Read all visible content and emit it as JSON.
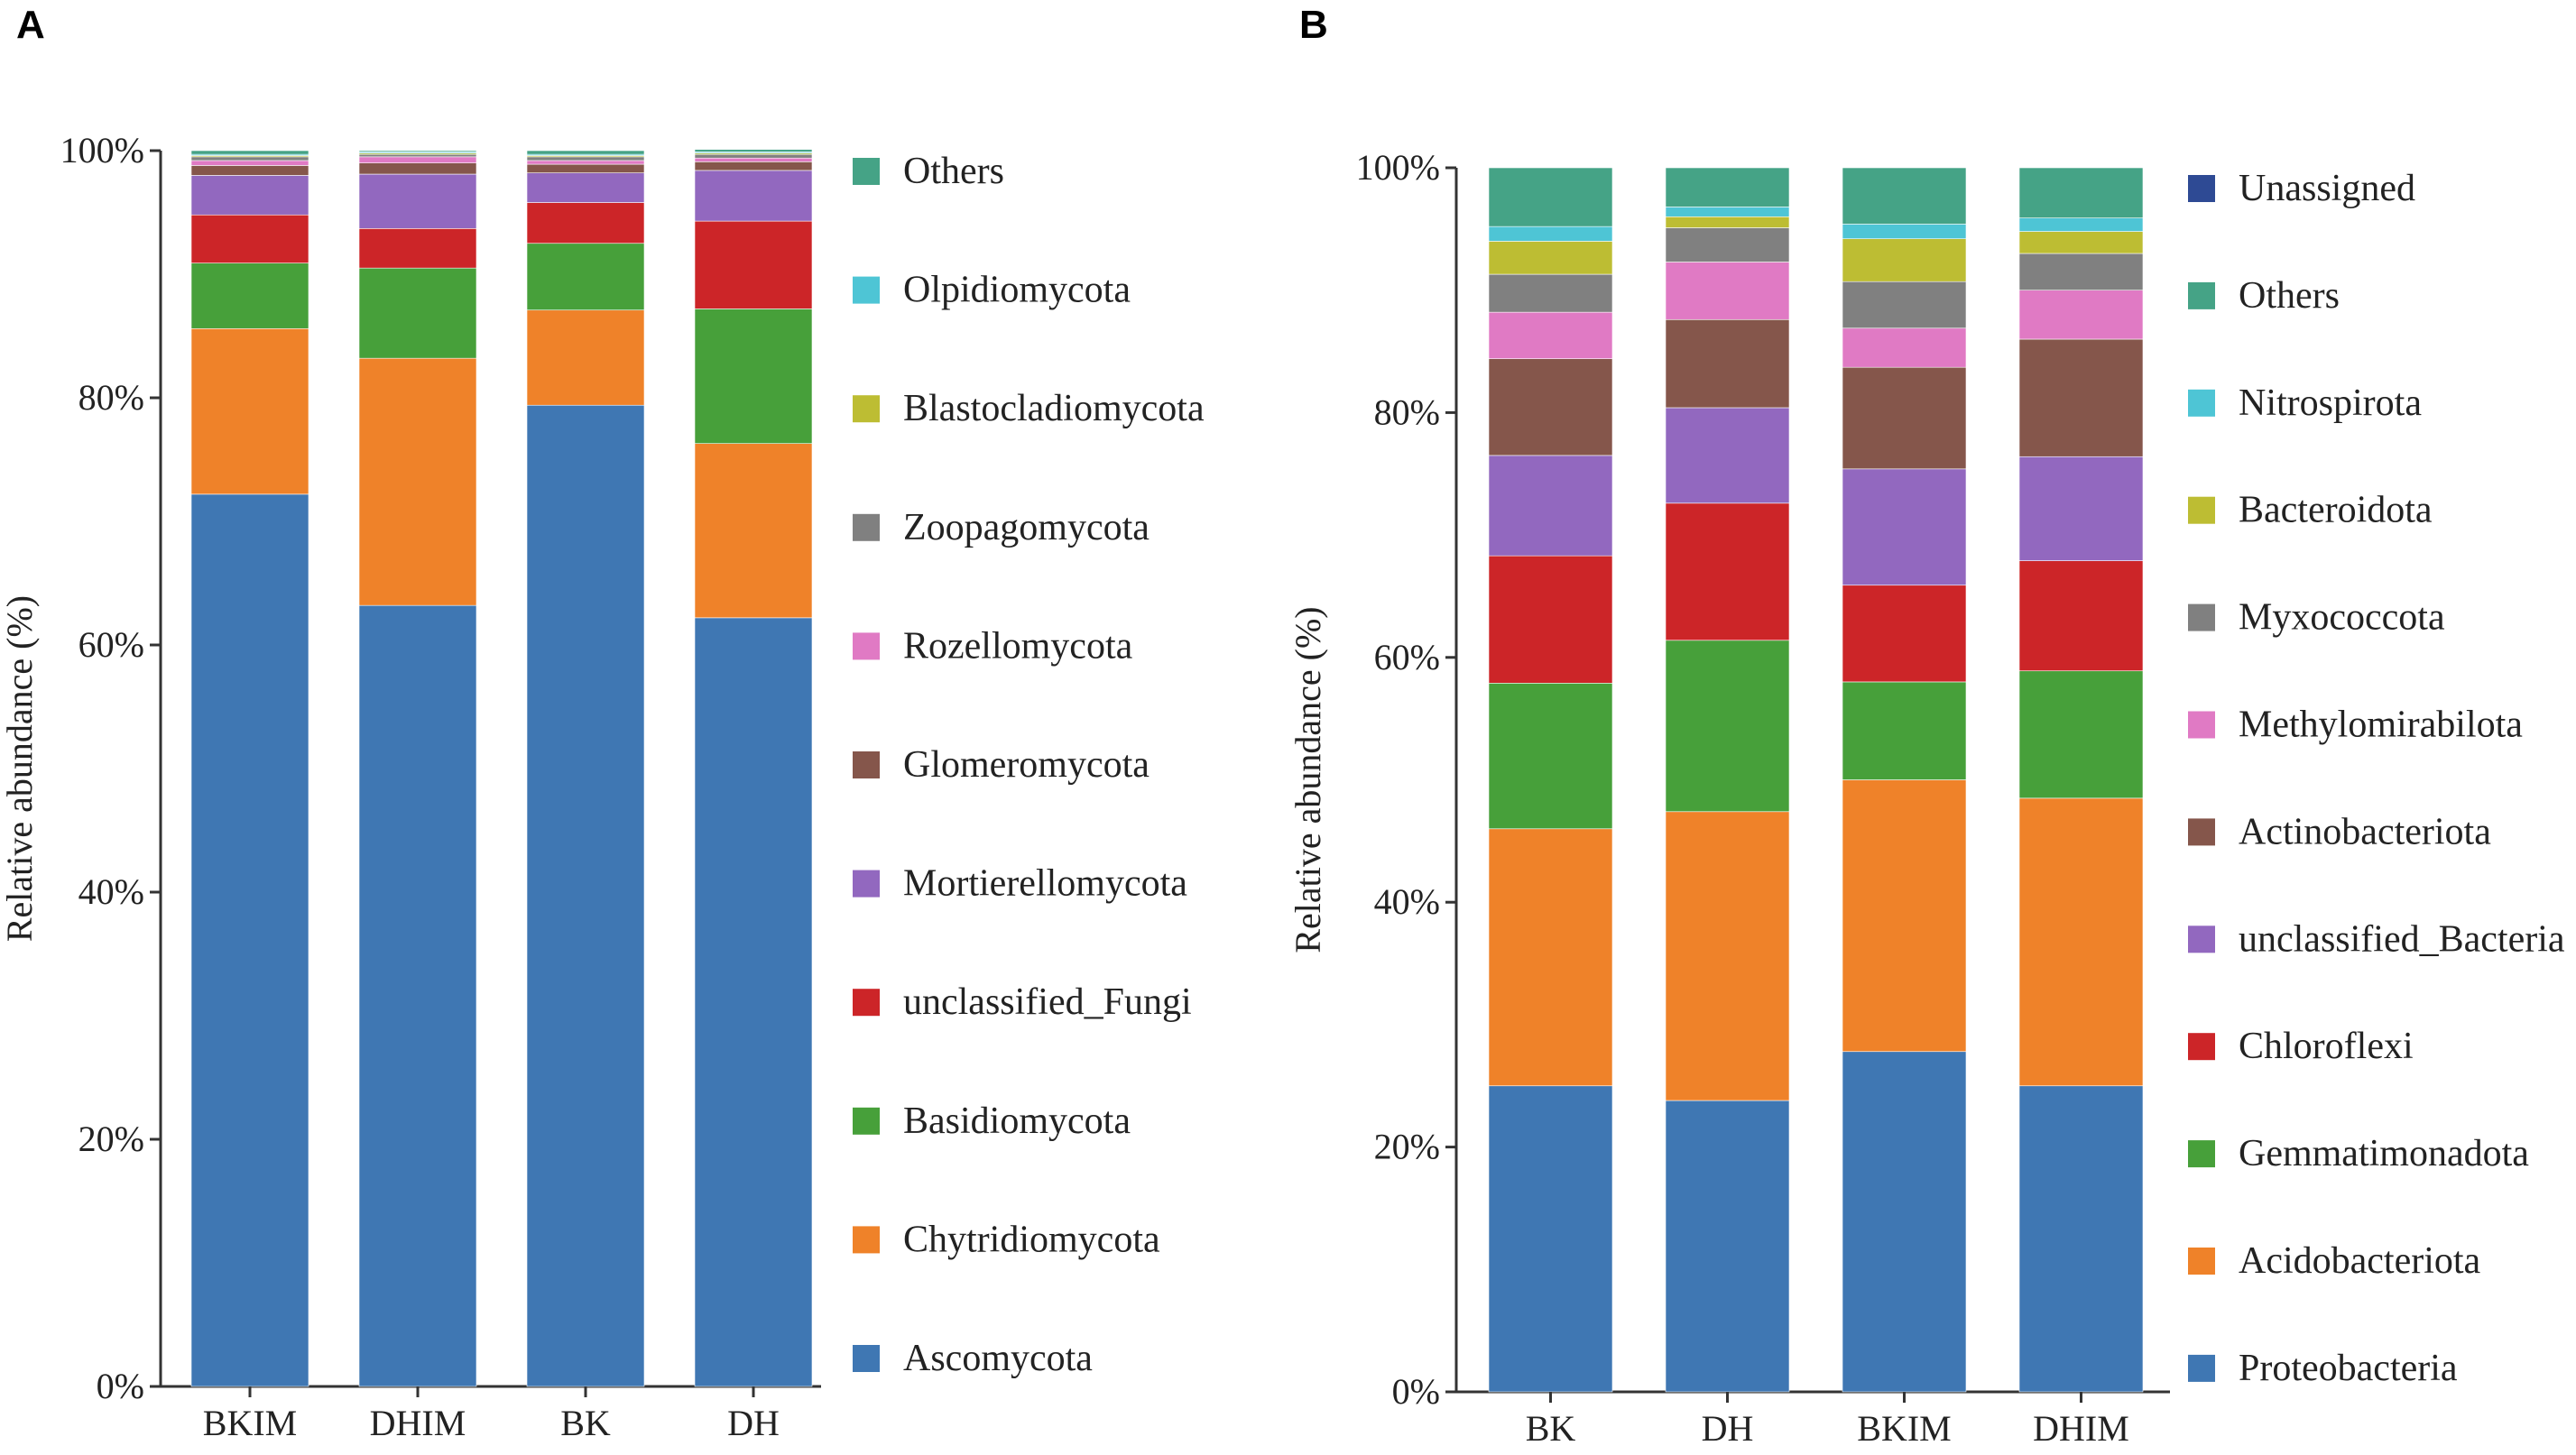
{
  "chart_data": [
    {
      "panel": "A",
      "type": "bar",
      "stacked": true,
      "ylabel": "Relative abundance (%)",
      "ylim": [
        0,
        100
      ],
      "yticks": [
        "0%",
        "20%",
        "40%",
        "60%",
        "80%",
        "100%"
      ],
      "categories": [
        "BKIM",
        "DHIM",
        "BK",
        "DH"
      ],
      "legend_position": "right",
      "series": [
        {
          "name": "Ascomycota",
          "color": "#3f77b3",
          "values": [
            72.2,
            63.2,
            79.4,
            62.2
          ]
        },
        {
          "name": "Chytridiomycota",
          "color": "#ef8229",
          "values": [
            13.4,
            20.0,
            7.7,
            14.1
          ]
        },
        {
          "name": "Basidiomycota",
          "color": "#47a03a",
          "values": [
            5.3,
            7.3,
            5.4,
            10.9
          ]
        },
        {
          "name": "unclassified_Fungi",
          "color": "#cc2528",
          "values": [
            3.9,
            3.2,
            3.3,
            7.1
          ]
        },
        {
          "name": "Mortierellomycota",
          "color": "#9268bf",
          "values": [
            3.2,
            4.4,
            2.4,
            4.1
          ]
        },
        {
          "name": "Glomeromycota",
          "color": "#85564b",
          "values": [
            0.8,
            0.9,
            0.7,
            0.7
          ]
        },
        {
          "name": "Rozellomycota",
          "color": "#e07ac4",
          "values": [
            0.4,
            0.5,
            0.3,
            0.3
          ]
        },
        {
          "name": "Zoopagomycota",
          "color": "#808080",
          "values": [
            0.3,
            0.2,
            0.3,
            0.3
          ]
        },
        {
          "name": "Blastocladiomycota",
          "color": "#bdbd33",
          "values": [
            0.1,
            0.1,
            0.1,
            0.1
          ]
        },
        {
          "name": "Olpidiomycota",
          "color": "#4ec5d5",
          "values": [
            0.1,
            0.1,
            0.1,
            0.1
          ]
        },
        {
          "name": "Others",
          "color": "#45a386",
          "values": [
            0.3,
            0.1,
            0.3,
            0.2
          ]
        }
      ]
    },
    {
      "panel": "B",
      "type": "bar",
      "stacked": true,
      "ylabel": "Relative abundance (%)",
      "ylim": [
        0,
        100
      ],
      "yticks": [
        "0%",
        "20%",
        "40%",
        "60%",
        "80%",
        "100%"
      ],
      "categories": [
        "BK",
        "DH",
        "BKIM",
        "DHIM"
      ],
      "legend_position": "right",
      "series": [
        {
          "name": "Proteobacteria",
          "color": "#3f77b3",
          "values": [
            25.0,
            23.8,
            27.8,
            25.0
          ]
        },
        {
          "name": "Acidobacteriota",
          "color": "#ef8229",
          "values": [
            21.0,
            23.6,
            22.2,
            23.5
          ]
        },
        {
          "name": "Gemmatimonadota",
          "color": "#47a03a",
          "values": [
            11.9,
            14.0,
            8.0,
            10.4
          ]
        },
        {
          "name": "Chloroflexi",
          "color": "#cc2528",
          "values": [
            10.4,
            11.2,
            7.9,
            9.0
          ]
        },
        {
          "name": "unclassified_Bacteria",
          "color": "#9268bf",
          "values": [
            8.2,
            7.8,
            9.5,
            8.5
          ]
        },
        {
          "name": "Actinobacteriota",
          "color": "#85564b",
          "values": [
            7.9,
            7.2,
            8.3,
            9.6
          ]
        },
        {
          "name": "Methylomirabilota",
          "color": "#e07ac4",
          "values": [
            3.8,
            4.7,
            3.2,
            4.0
          ]
        },
        {
          "name": "Myxococcota",
          "color": "#808080",
          "values": [
            3.1,
            2.8,
            3.8,
            3.0
          ]
        },
        {
          "name": "Bacteroidota",
          "color": "#bdbd33",
          "values": [
            2.7,
            0.9,
            3.5,
            1.8
          ]
        },
        {
          "name": "Nitrospirota",
          "color": "#4ec5d5",
          "values": [
            1.2,
            0.8,
            1.2,
            1.1
          ]
        },
        {
          "name": "Others",
          "color": "#45a386",
          "values": [
            4.8,
            3.2,
            4.6,
            4.1
          ]
        },
        {
          "name": "Unassigned",
          "color": "#2e4a94",
          "values": [
            0.0,
            0.0,
            0.0,
            0.0
          ]
        }
      ]
    }
  ]
}
